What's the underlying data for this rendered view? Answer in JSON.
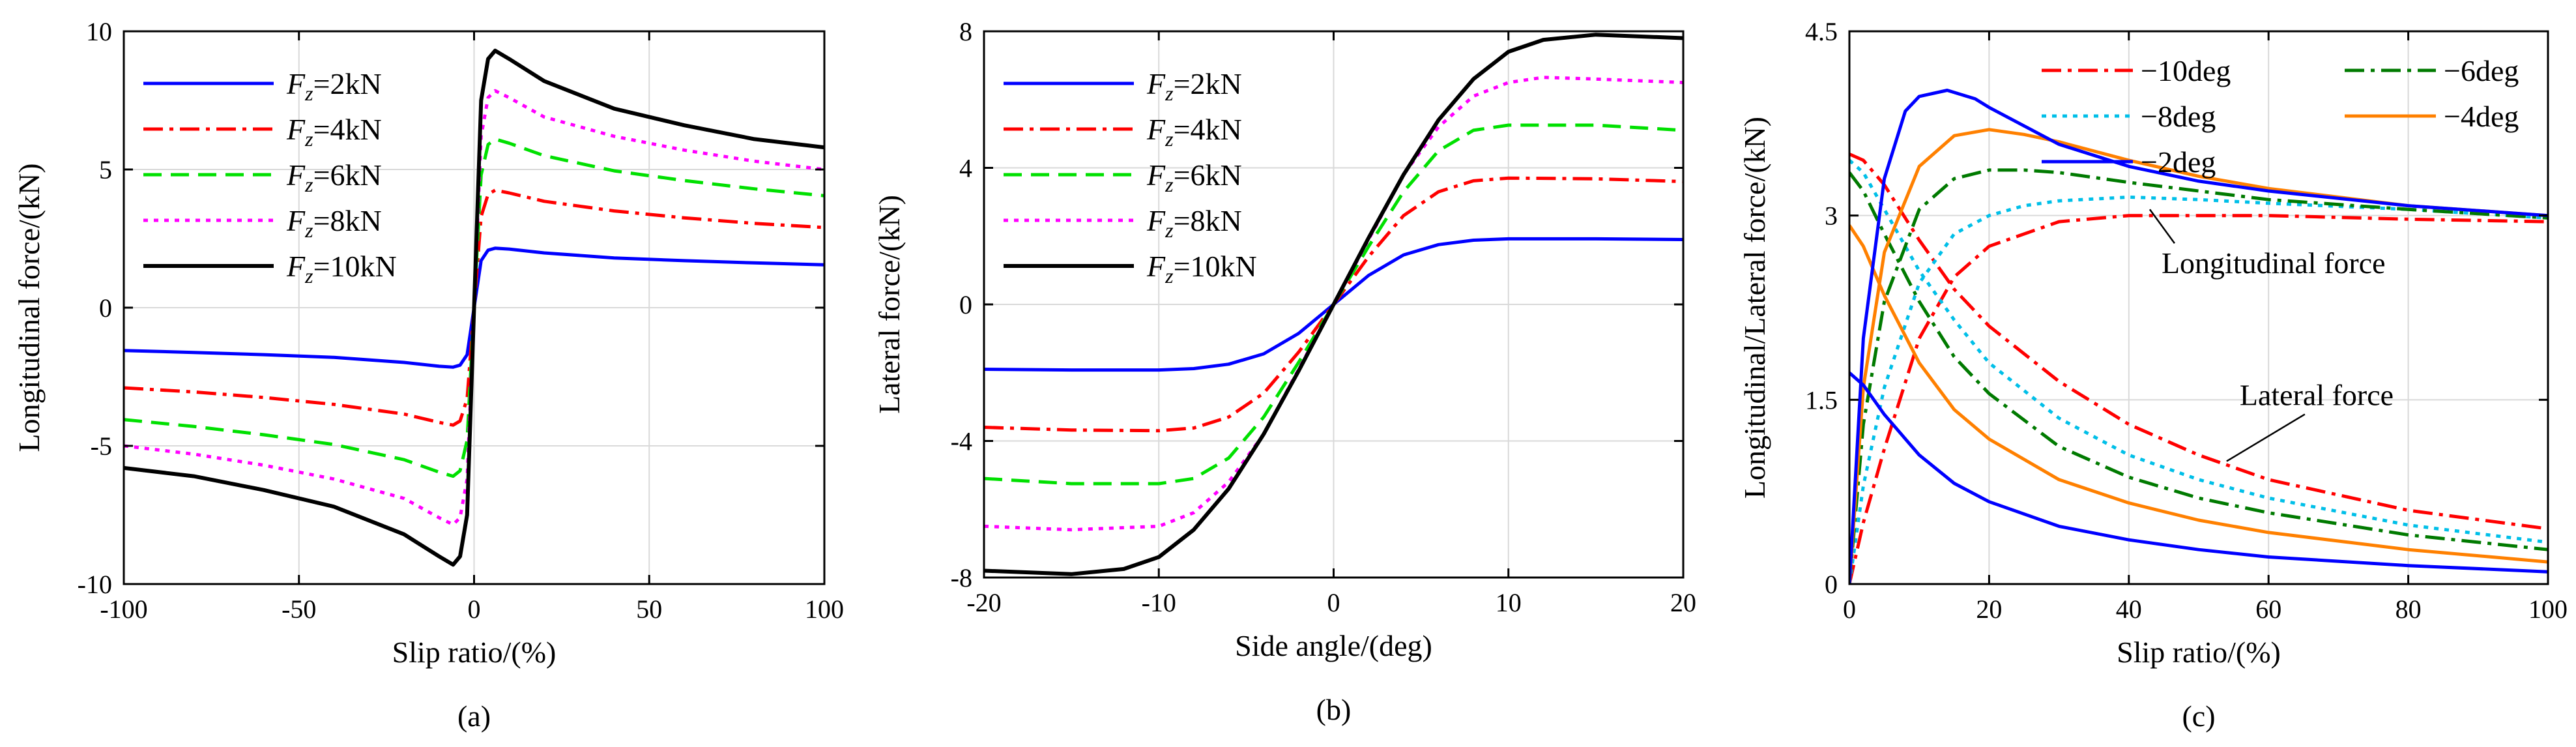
{
  "chart_data": [
    {
      "type": "line",
      "caption": "(a)",
      "xlabel": "Slip ratio/(%)",
      "ylabel": "Longitudinal force/(kN)",
      "xlim": [
        -100,
        100
      ],
      "ylim": [
        -10,
        10
      ],
      "xticks": [
        "-100",
        "-50",
        "0",
        "50",
        "100"
      ],
      "yticks": [
        "-10",
        "-5",
        "0",
        "5",
        "10"
      ],
      "legend_position": "top-left",
      "series": [
        {
          "name": "Fz=2kN",
          "prefix": "F",
          "sub": "z",
          "suffix": "=2kN",
          "color": "#0000ff",
          "dash": "solid",
          "fz": 2,
          "x": [
            -100,
            -80,
            -60,
            -40,
            -20,
            -10,
            -6,
            -4,
            -2,
            0,
            2,
            4,
            6,
            10,
            20,
            40,
            60,
            80,
            100
          ],
          "y": [
            -1.55,
            -1.62,
            -1.7,
            -1.8,
            -1.98,
            -2.12,
            -2.15,
            -2.08,
            -1.7,
            0,
            1.7,
            2.08,
            2.15,
            2.12,
            1.98,
            1.8,
            1.7,
            1.62,
            1.55
          ]
        },
        {
          "name": "Fz=4kN",
          "prefix": "F",
          "sub": "z",
          "suffix": "=4kN",
          "color": "#ff0000",
          "dash": "dashdot",
          "fz": 4,
          "x": [
            -100,
            -80,
            -60,
            -40,
            -20,
            -10,
            -6,
            -4,
            -2,
            0,
            2,
            4,
            6,
            10,
            20,
            40,
            60,
            80,
            100
          ],
          "y": [
            -2.9,
            -3.05,
            -3.25,
            -3.5,
            -3.85,
            -4.15,
            -4.25,
            -4.1,
            -3.3,
            0,
            3.3,
            4.1,
            4.25,
            4.15,
            3.85,
            3.5,
            3.25,
            3.05,
            2.9
          ]
        },
        {
          "name": "Fz=6kN",
          "prefix": "F",
          "sub": "z",
          "suffix": "=6kN",
          "color": "#00e000",
          "dash": "dash",
          "fz": 6,
          "x": [
            -100,
            -80,
            -60,
            -40,
            -20,
            -10,
            -6,
            -4,
            -2,
            0,
            2,
            4,
            6,
            10,
            20,
            40,
            60,
            80,
            100
          ],
          "y": [
            -4.05,
            -4.3,
            -4.6,
            -4.95,
            -5.5,
            -5.95,
            -6.1,
            -5.9,
            -4.8,
            0,
            4.8,
            5.9,
            6.1,
            5.95,
            5.5,
            4.95,
            4.6,
            4.3,
            4.05
          ]
        },
        {
          "name": "Fz=8kN",
          "prefix": "F",
          "sub": "z",
          "suffix": "=8kN",
          "color": "#ff00ff",
          "dash": "dot",
          "fz": 8,
          "x": [
            -100,
            -80,
            -60,
            -40,
            -20,
            -10,
            -6,
            -4,
            -2,
            0,
            2,
            4,
            6,
            10,
            20,
            40,
            60,
            80,
            100
          ],
          "y": [
            -5.0,
            -5.3,
            -5.7,
            -6.2,
            -6.9,
            -7.6,
            -7.85,
            -7.6,
            -6.2,
            0,
            6.2,
            7.6,
            7.85,
            7.6,
            6.9,
            6.2,
            5.7,
            5.3,
            5.0
          ]
        },
        {
          "name": "Fz=10kN",
          "prefix": "F",
          "sub": "z",
          "suffix": "=10kN",
          "color": "#000000",
          "dash": "solid",
          "fz": 10,
          "x": [
            -100,
            -80,
            -60,
            -40,
            -20,
            -10,
            -6,
            -4,
            -2,
            0,
            2,
            4,
            6,
            10,
            20,
            40,
            60,
            80,
            100
          ],
          "y": [
            -5.8,
            -6.1,
            -6.6,
            -7.2,
            -8.2,
            -9.0,
            -9.3,
            -9.0,
            -7.5,
            0,
            7.5,
            9.0,
            9.3,
            9.0,
            8.2,
            7.2,
            6.6,
            6.1,
            5.8
          ]
        }
      ]
    },
    {
      "type": "line",
      "caption": "(b)",
      "xlabel": "Side angle/(deg)",
      "ylabel": "Lateral force/(kN)",
      "xlim": [
        -20,
        20
      ],
      "ylim": [
        -8,
        8
      ],
      "xticks": [
        "-20",
        "-10",
        "0",
        "10",
        "20"
      ],
      "yticks": [
        "-8",
        "-4",
        "0",
        "4",
        "8"
      ],
      "legend_position": "top-left",
      "series": [
        {
          "name": "Fz=2kN",
          "prefix": "F",
          "sub": "z",
          "suffix": "=2kN",
          "color": "#0000ff",
          "dash": "solid",
          "fz": 2,
          "x": [
            -20,
            -15,
            -10,
            -8,
            -6,
            -4,
            -2,
            0,
            2,
            4,
            6,
            8,
            10,
            15,
            20
          ],
          "y": [
            -1.9,
            -1.92,
            -1.92,
            -1.88,
            -1.75,
            -1.45,
            -0.85,
            0,
            0.85,
            1.45,
            1.75,
            1.88,
            1.92,
            1.92,
            1.9
          ]
        },
        {
          "name": "Fz=4kN",
          "prefix": "F",
          "sub": "z",
          "suffix": "=4kN",
          "color": "#ff0000",
          "dash": "dashdot",
          "fz": 4,
          "x": [
            -20,
            -15,
            -10,
            -8,
            -6,
            -4,
            -2,
            0,
            2,
            4,
            6,
            8,
            10,
            15,
            20
          ],
          "y": [
            -3.6,
            -3.68,
            -3.7,
            -3.62,
            -3.3,
            -2.6,
            -1.4,
            0,
            1.4,
            2.6,
            3.3,
            3.62,
            3.7,
            3.68,
            3.6
          ]
        },
        {
          "name": "Fz=6kN",
          "prefix": "F",
          "sub": "z",
          "suffix": "=6kN",
          "color": "#00e000",
          "dash": "dash",
          "fz": 6,
          "x": [
            -20,
            -15,
            -10,
            -8,
            -6,
            -4,
            -2,
            0,
            2,
            4,
            6,
            8,
            10,
            15,
            20
          ],
          "y": [
            -5.1,
            -5.25,
            -5.25,
            -5.1,
            -4.5,
            -3.3,
            -1.7,
            0,
            1.7,
            3.3,
            4.5,
            5.1,
            5.25,
            5.25,
            5.1
          ]
        },
        {
          "name": "Fz=8kN",
          "prefix": "F",
          "sub": "z",
          "suffix": "=8kN",
          "color": "#ff00ff",
          "dash": "dot",
          "fz": 8,
          "x": [
            -20,
            -15,
            -10,
            -8,
            -6,
            -4,
            -2,
            0,
            2,
            4,
            6,
            8,
            10,
            12,
            15,
            20
          ],
          "y": [
            -6.5,
            -6.6,
            -6.5,
            -6.1,
            -5.2,
            -3.8,
            -1.9,
            0,
            1.9,
            3.8,
            5.2,
            6.1,
            6.5,
            6.65,
            6.6,
            6.5
          ]
        },
        {
          "name": "Fz=10kN",
          "prefix": "F",
          "sub": "z",
          "suffix": "=10kN",
          "color": "#000000",
          "dash": "solid",
          "fz": 10,
          "x": [
            -20,
            -15,
            -12,
            -10,
            -8,
            -6,
            -4,
            -2,
            0,
            2,
            4,
            6,
            8,
            10,
            12,
            15,
            20
          ],
          "y": [
            -7.8,
            -7.9,
            -7.75,
            -7.4,
            -6.6,
            -5.4,
            -3.8,
            -1.95,
            0,
            1.95,
            3.8,
            5.4,
            6.6,
            7.4,
            7.75,
            7.9,
            7.8
          ]
        }
      ]
    },
    {
      "type": "line",
      "caption": "(c)",
      "xlabel": "Slip ratio/(%)",
      "ylabel": "Longitudinal/Lateral force/(kN)",
      "xlim": [
        0,
        100
      ],
      "ylim": [
        0,
        4.5
      ],
      "xticks": [
        "0",
        "20",
        "40",
        "60",
        "80",
        "100"
      ],
      "yticks": [
        "0",
        "1.5",
        "3",
        "4.5"
      ],
      "legend_position": "top-right",
      "annotations": [
        {
          "text": "Longitudinal force",
          "points_to": [
            43,
            3.05
          ]
        },
        {
          "text": "Lateral force",
          "points_to": [
            54,
            1.0
          ]
        }
      ],
      "series": [
        {
          "name": "−10deg",
          "color": "#ff0000",
          "dash": "dashdot",
          "group": "longitudinal",
          "x": [
            0,
            2,
            5,
            10,
            15,
            20,
            30,
            40,
            50,
            60,
            80,
            100
          ],
          "y": [
            0,
            0.5,
            1.1,
            2.0,
            2.5,
            2.75,
            2.95,
            3.0,
            3.0,
            3.0,
            2.97,
            2.95
          ]
        },
        {
          "name": "−10deg",
          "color": "#ff0000",
          "dash": "dashdot",
          "group": "lateral",
          "x": [
            0,
            2,
            5,
            10,
            15,
            20,
            30,
            40,
            50,
            60,
            80,
            100
          ],
          "y": [
            3.5,
            3.45,
            3.25,
            2.8,
            2.4,
            2.1,
            1.65,
            1.3,
            1.05,
            0.85,
            0.6,
            0.45
          ]
        },
        {
          "name": "−8deg",
          "color": "#00bfe8",
          "dash": "dot",
          "group": "longitudinal",
          "x": [
            0,
            2,
            5,
            10,
            15,
            20,
            25,
            30,
            40,
            50,
            60,
            80,
            100
          ],
          "y": [
            0,
            0.8,
            1.6,
            2.45,
            2.85,
            3.0,
            3.08,
            3.12,
            3.15,
            3.13,
            3.1,
            3.05,
            2.98
          ]
        },
        {
          "name": "−8deg",
          "color": "#00bfe8",
          "dash": "dot",
          "group": "lateral",
          "x": [
            0,
            2,
            5,
            10,
            15,
            20,
            30,
            40,
            50,
            60,
            80,
            100
          ],
          "y": [
            3.45,
            3.35,
            3.05,
            2.55,
            2.15,
            1.8,
            1.35,
            1.05,
            0.85,
            0.7,
            0.48,
            0.34
          ]
        },
        {
          "name": "−6deg",
          "color": "#007a00",
          "dash": "dashdot",
          "group": "longitudinal",
          "x": [
            0,
            2,
            5,
            10,
            15,
            20,
            25,
            30,
            40,
            50,
            60,
            80,
            100
          ],
          "y": [
            0,
            1.3,
            2.3,
            3.05,
            3.3,
            3.37,
            3.37,
            3.35,
            3.27,
            3.2,
            3.13,
            3.05,
            2.98
          ]
        },
        {
          "name": "−6deg",
          "color": "#007a00",
          "dash": "dashdot",
          "group": "lateral",
          "x": [
            0,
            2,
            5,
            10,
            15,
            20,
            30,
            40,
            50,
            60,
            80,
            100
          ],
          "y": [
            3.35,
            3.2,
            2.85,
            2.3,
            1.85,
            1.55,
            1.12,
            0.87,
            0.7,
            0.58,
            0.4,
            0.28
          ]
        },
        {
          "name": "−4deg",
          "color": "#ff8000",
          "dash": "solid",
          "group": "longitudinal",
          "x": [
            0,
            2,
            5,
            10,
            15,
            20,
            25,
            30,
            40,
            50,
            60,
            80,
            100
          ],
          "y": [
            0,
            1.6,
            2.7,
            3.4,
            3.65,
            3.7,
            3.66,
            3.6,
            3.45,
            3.32,
            3.22,
            3.08,
            3.0
          ]
        },
        {
          "name": "−4deg",
          "color": "#ff8000",
          "dash": "solid",
          "group": "lateral",
          "x": [
            0,
            2,
            5,
            10,
            15,
            20,
            30,
            40,
            50,
            60,
            80,
            100
          ],
          "y": [
            2.92,
            2.75,
            2.35,
            1.8,
            1.42,
            1.18,
            0.85,
            0.66,
            0.52,
            0.42,
            0.28,
            0.18
          ]
        },
        {
          "name": "−2deg",
          "color": "#0000ff",
          "dash": "solid",
          "group": "longitudinal",
          "x": [
            0,
            2,
            5,
            8,
            10,
            14,
            18,
            20,
            30,
            40,
            50,
            60,
            80,
            100
          ],
          "y": [
            0,
            2.0,
            3.3,
            3.85,
            3.97,
            4.02,
            3.95,
            3.88,
            3.58,
            3.4,
            3.28,
            3.2,
            3.08,
            3.0
          ]
        },
        {
          "name": "−2deg",
          "color": "#0000ff",
          "dash": "solid",
          "group": "lateral",
          "x": [
            0,
            2,
            5,
            10,
            15,
            20,
            30,
            40,
            50,
            60,
            80,
            100
          ],
          "y": [
            1.72,
            1.62,
            1.38,
            1.05,
            0.82,
            0.67,
            0.47,
            0.36,
            0.28,
            0.22,
            0.15,
            0.1
          ]
        }
      ],
      "legend": [
        {
          "label": "−10deg",
          "color": "#ff0000",
          "dash": "dashdot"
        },
        {
          "label": "−6deg",
          "color": "#007a00",
          "dash": "dashdot"
        },
        {
          "label": "−8deg",
          "color": "#00bfe8",
          "dash": "dot"
        },
        {
          "label": "−4deg",
          "color": "#ff8000",
          "dash": "solid"
        },
        {
          "label": "−2deg",
          "color": "#0000ff",
          "dash": "solid"
        }
      ]
    }
  ]
}
